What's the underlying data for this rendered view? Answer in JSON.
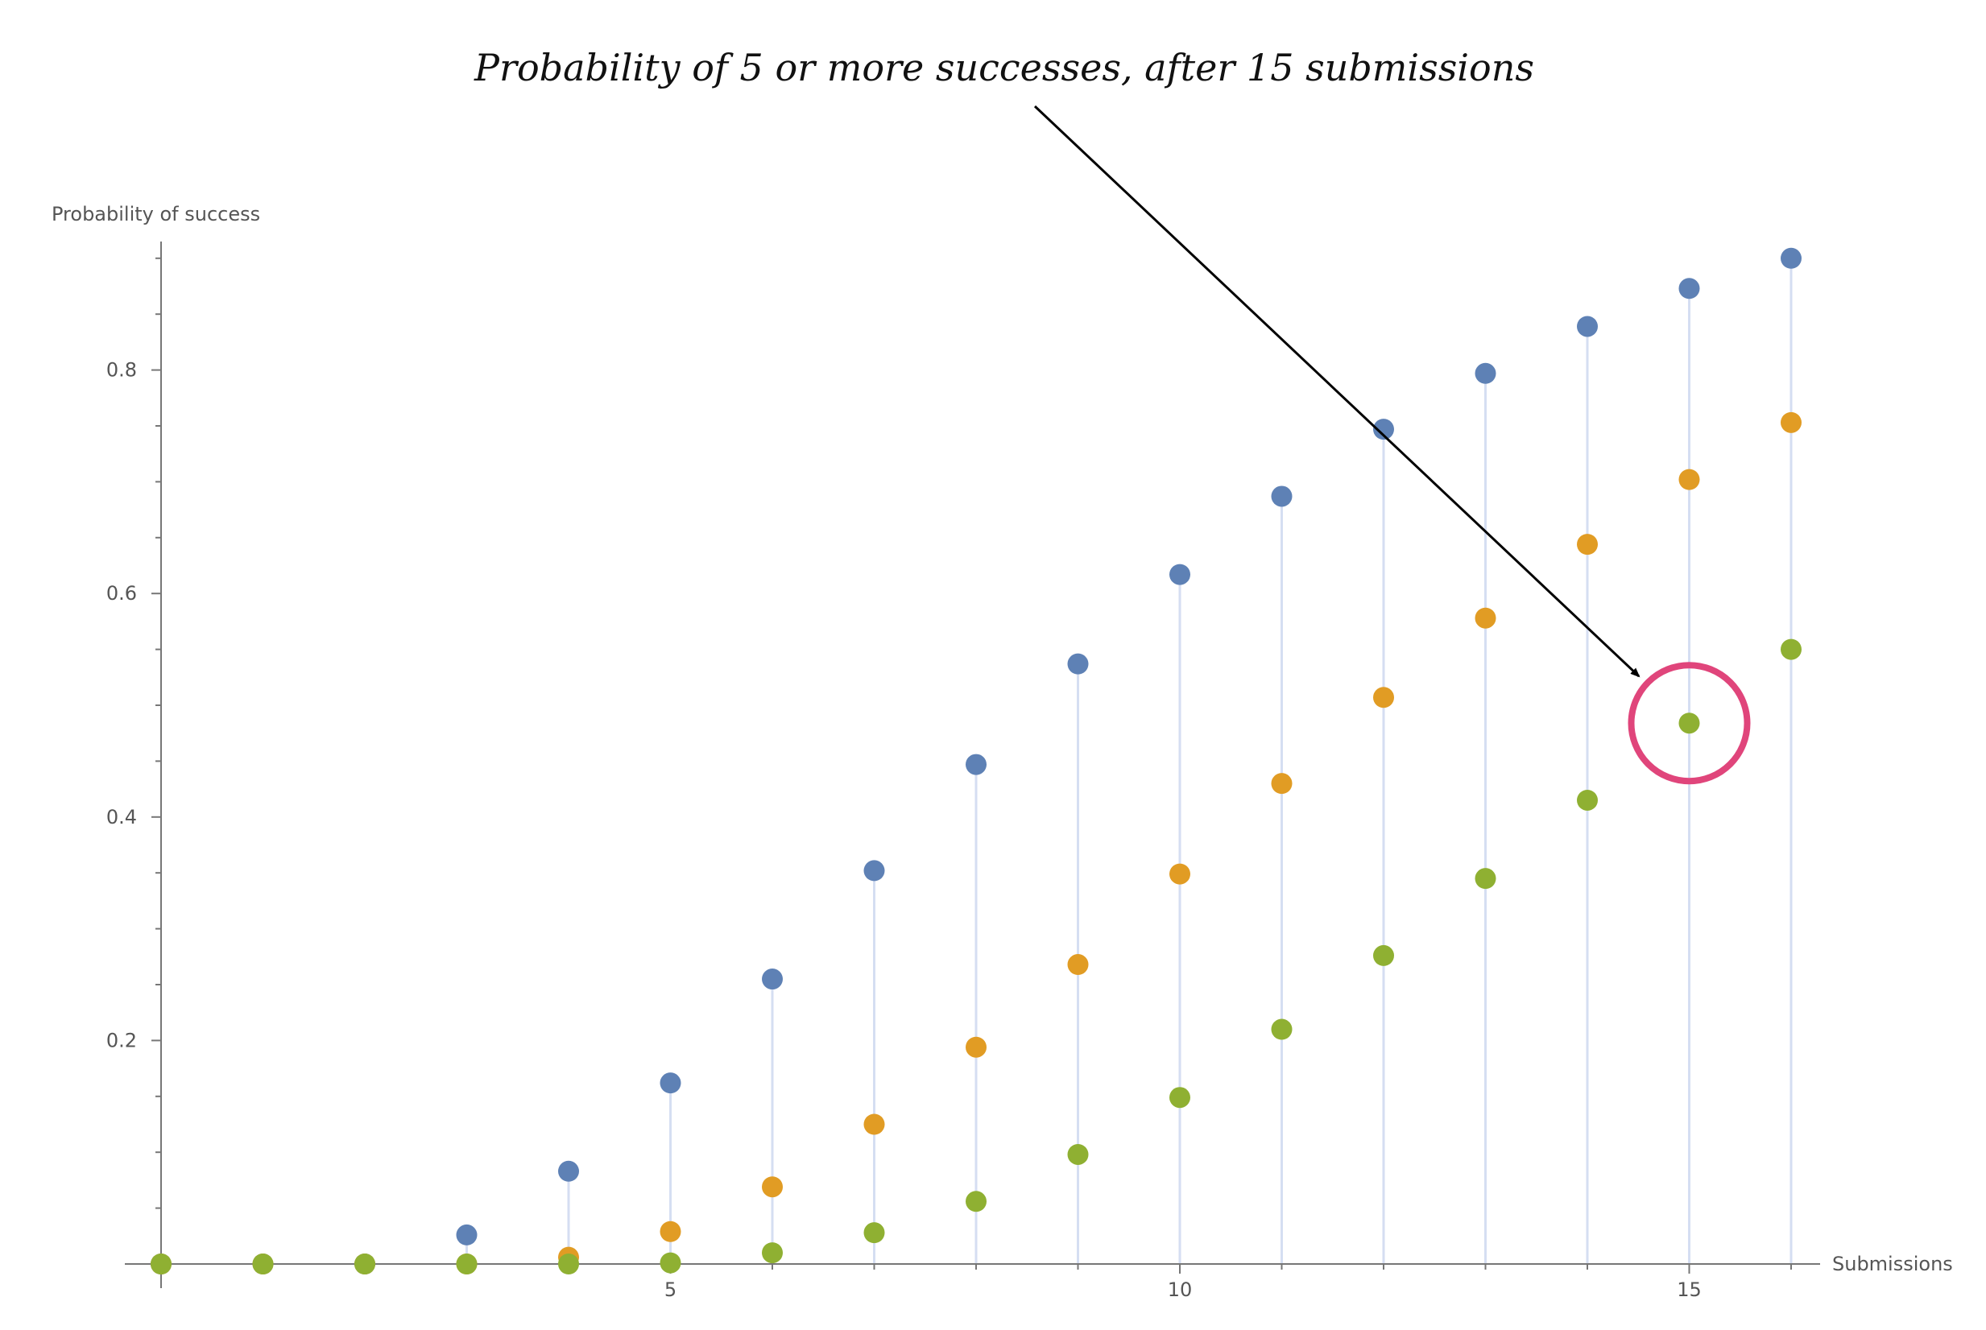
{
  "chart_data": {
    "type": "scatter",
    "style": "discrete points with vertical drop lines to the x-axis",
    "xlabel": "Submissions",
    "ylabel": "Probability of success",
    "xlim": [
      0,
      16
    ],
    "ylim": [
      0,
      0.9
    ],
    "x_ticks": [
      5,
      10,
      15
    ],
    "y_ticks": [
      0.2,
      0.4,
      0.6,
      0.8
    ],
    "grid": false,
    "legend": "none",
    "x": [
      0,
      1,
      2,
      3,
      4,
      5,
      6,
      7,
      8,
      9,
      10,
      11,
      12,
      13,
      14,
      15,
      16
    ],
    "series": [
      {
        "color": "#5e81b5",
        "stem_color": "#d5def2",
        "values": [
          0,
          0,
          0,
          0.026,
          0.083,
          0.162,
          0.255,
          0.352,
          0.447,
          0.537,
          0.617,
          0.687,
          0.747,
          0.797,
          0.839,
          0.873,
          0.9
        ]
      },
      {
        "color": "#e19c24",
        "stem_color": "#ecd4b8",
        "values": [
          0,
          0,
          0,
          0,
          0.006,
          0.029,
          0.069,
          0.125,
          0.194,
          0.268,
          0.349,
          0.43,
          0.507,
          0.578,
          0.644,
          0.702,
          0.753
        ]
      },
      {
        "color": "#8fb032",
        "stem_color": "#d4d2a8",
        "values": [
          0,
          0,
          0,
          0,
          0,
          0.001,
          0.01,
          0.028,
          0.056,
          0.098,
          0.149,
          0.21,
          0.276,
          0.345,
          0.415,
          0.484,
          0.55
        ]
      }
    ],
    "annotation": {
      "text": "Probability of 5 or more successes, after 15 submissions",
      "target_x": 15,
      "target_y": 0.484,
      "highlight_color": "#e0457b"
    }
  }
}
